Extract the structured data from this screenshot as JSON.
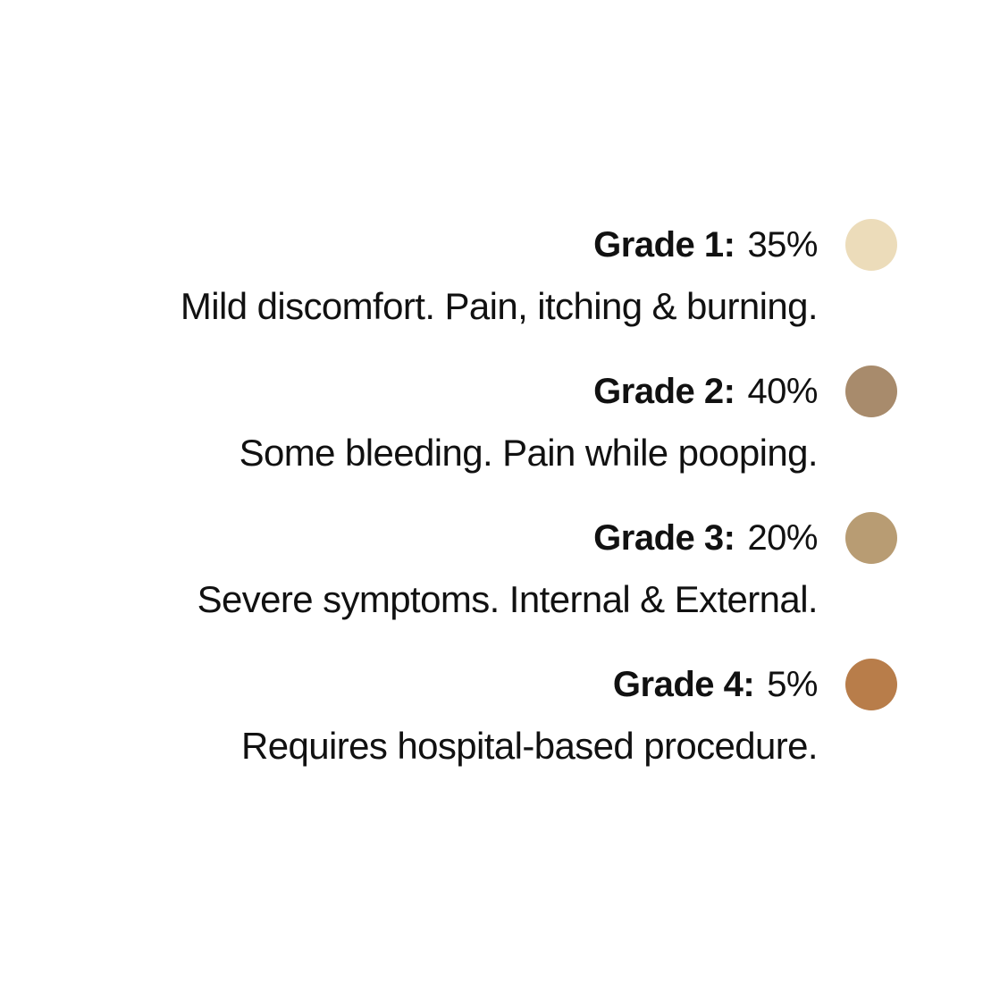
{
  "items": [
    {
      "label": "Grade 1:",
      "percent": "35%",
      "description": "Mild discomfort. Pain, itching & burning.",
      "color": "#ecdcba"
    },
    {
      "label": "Grade 2:",
      "percent": "40%",
      "description": "Some bleeding. Pain while pooping.",
      "color": "#a88b6c"
    },
    {
      "label": "Grade 3:",
      "percent": "20%",
      "description": "Severe symptoms. Internal & External.",
      "color": "#b89c73"
    },
    {
      "label": "Grade 4:",
      "percent": "5%",
      "description": "Requires hospital-based procedure.",
      "color": "#b87d4a"
    }
  ]
}
